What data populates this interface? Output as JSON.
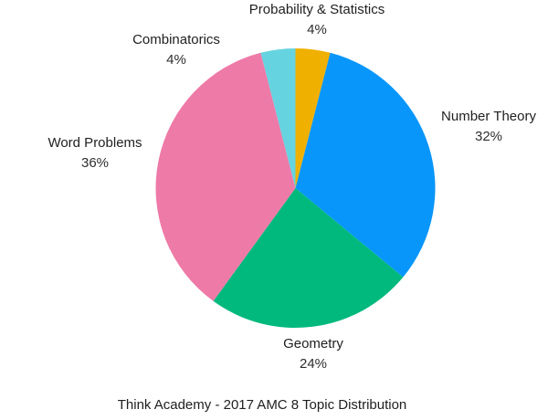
{
  "chart_data": {
    "type": "pie",
    "title": "Think Academy - 2017 AMC 8 Topic Distribution",
    "legend_position": "labeled-outside",
    "start_angle_deg": 0,
    "direction": "clockwise",
    "total": 100,
    "background_color": "#ffffff",
    "text_color": "#212121",
    "slices": [
      {
        "label": "Probability & Statistics",
        "value": 4,
        "pct_label": "4%",
        "color": "#efb000"
      },
      {
        "label": "Number Theory",
        "value": 32,
        "pct_label": "32%",
        "color": "#0896fb"
      },
      {
        "label": "Geometry",
        "value": 24,
        "pct_label": "24%",
        "color": "#02b97d"
      },
      {
        "label": "Word Problems",
        "value": 36,
        "pct_label": "36%",
        "color": "#ee7aa8"
      },
      {
        "label": "Combinatorics",
        "value": 4,
        "pct_label": "4%",
        "color": "#66d3e0"
      }
    ]
  }
}
